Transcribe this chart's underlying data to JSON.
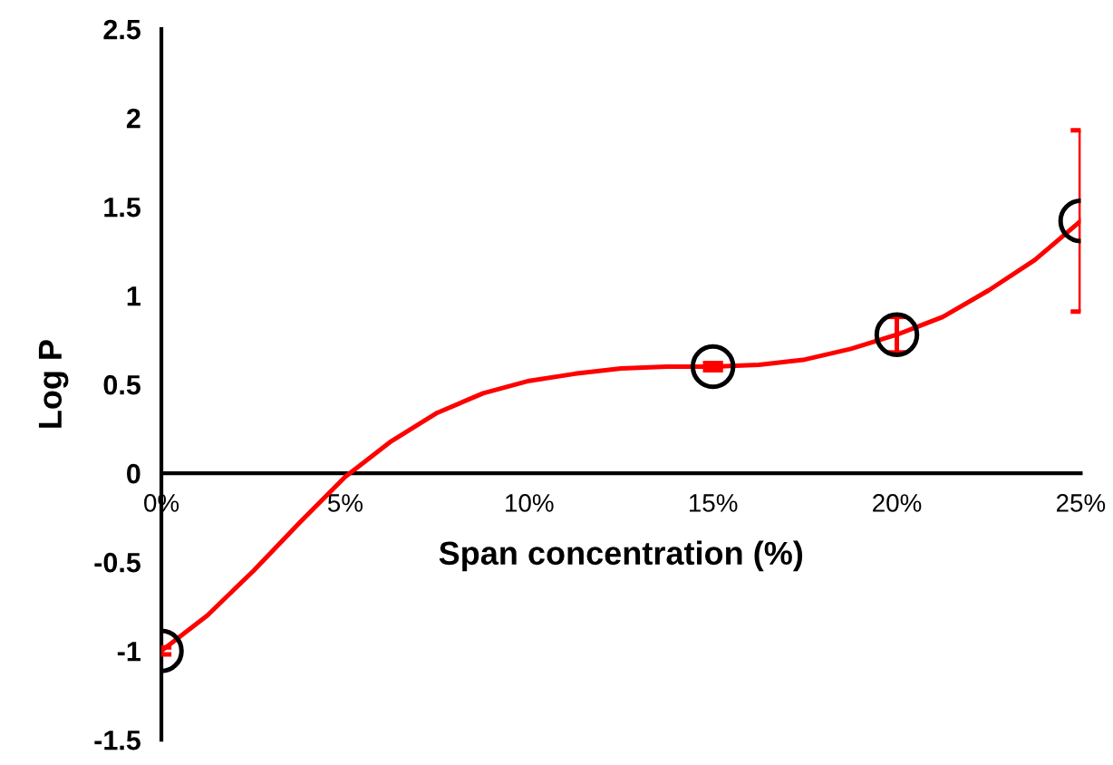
{
  "chart_data": {
    "type": "scatter",
    "xlabel": "Span concentration (%)",
    "ylabel": "Log P",
    "x": [
      0,
      15,
      20,
      25
    ],
    "series": [
      {
        "type": "line",
        "color": "#ff0000",
        "x": [
          0,
          1.25,
          2.5,
          3.75,
          5,
          6.25,
          7.5,
          8.75,
          10,
          11.25,
          12.5,
          13.75,
          15,
          16.25,
          17.5,
          18.75,
          20,
          21.25,
          22.5,
          23.75,
          25
        ],
        "values": [
          -1.0,
          -0.8,
          -0.55,
          -0.28,
          -0.02,
          0.18,
          0.34,
          0.45,
          0.52,
          0.56,
          0.59,
          0.6,
          0.6,
          0.61,
          0.64,
          0.7,
          0.78,
          0.88,
          1.03,
          1.2,
          1.42
        ],
        "errors": [
          0.02,
          null,
          null,
          null,
          null,
          null,
          null,
          null,
          null,
          null,
          null,
          null,
          0.02,
          null,
          null,
          null,
          0.1,
          null,
          null,
          null,
          0.51
        ],
        "marker": "none",
        "line_style": "solid"
      },
      {
        "color": "#000000",
        "values": [
          -1.0,
          0.6,
          0.78,
          1.42
        ],
        "marker": "circle"
      }
    ],
    "xlim": [
      0,
      25
    ],
    "xticks": [
      {
        "value": 0,
        "label": "0%"
      },
      {
        "value": 5,
        "label": "5%"
      },
      {
        "value": 10,
        "label": "10%"
      },
      {
        "value": 15,
        "label": "15%"
      },
      {
        "value": 20,
        "label": "20%"
      },
      {
        "value": 25,
        "label": "25%"
      }
    ],
    "ylim": [
      -1.5,
      2.5
    ],
    "yticks": [
      {
        "value": -1.5,
        "label": "-1.5"
      },
      {
        "value": -1,
        "label": "-1"
      },
      {
        "value": -0.5,
        "label": "-0.5"
      },
      0,
      0.5,
      1,
      1.5,
      2,
      2.5
    ],
    "grid": false,
    "legend": false
  }
}
